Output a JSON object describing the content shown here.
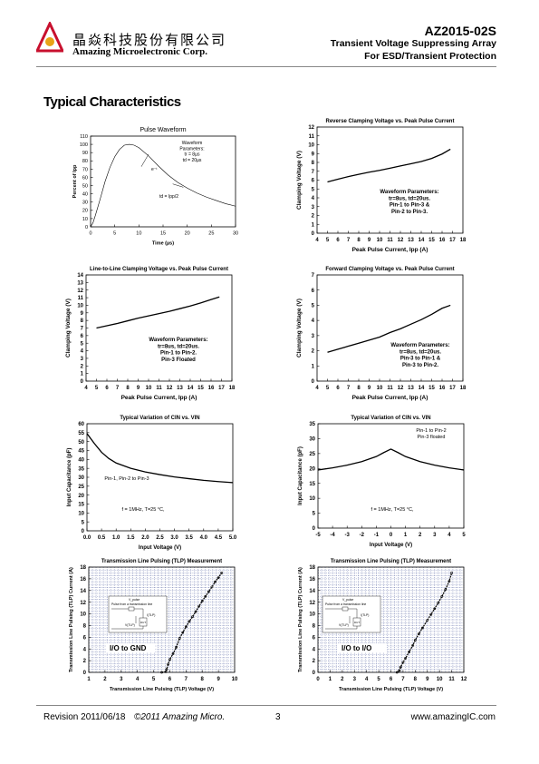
{
  "header": {
    "company_cn": "晶焱科技股份有限公司",
    "company_en": "Amazing Microelectronic Corp.",
    "part_number": "AZ2015-02S",
    "desc_line1": "Transient Voltage Suppressing Array",
    "desc_line2": "For ESD/Transient Protection",
    "logo_color": "#c8102e",
    "logo_accent": "#e8a317"
  },
  "section_title": "Typical Characteristics",
  "footer": {
    "revision": "Revision 2011/06/18",
    "copyright": "©2011 Amazing Micro.",
    "page": "3",
    "url": "www.amazingIC.com"
  },
  "chart_data": [
    {
      "id": "pulse",
      "type": "line",
      "title": "Pulse Waveform",
      "xlabel": "Time (µs)",
      "ylabel": "Percent of Ipp",
      "xlim": [
        0,
        30
      ],
      "ylim": [
        0,
        110
      ],
      "xticks": [
        "0",
        "5",
        "10",
        "15",
        "20",
        "25",
        "30"
      ],
      "yticks": [
        "0",
        "10",
        "20",
        "30",
        "40",
        "50",
        "60",
        "70",
        "80",
        "90",
        "100",
        "110"
      ],
      "grid": false,
      "annotations": [
        "Waveform",
        "Parameters:",
        "tr = 8µs",
        "td = 20µs",
        "e⁻ᵗ",
        "td = Ipp/2"
      ],
      "series": [
        {
          "x": [
            0,
            0.5,
            1,
            2,
            3,
            4,
            5,
            6,
            7,
            8,
            9,
            10,
            12,
            14,
            16,
            18,
            20,
            22,
            24,
            26,
            28,
            30
          ],
          "y": [
            0,
            5,
            14,
            34,
            55,
            72,
            85,
            94,
            99,
            100,
            99,
            96,
            86,
            74,
            63,
            54,
            47,
            41,
            36,
            32,
            28,
            25
          ]
        }
      ]
    },
    {
      "id": "reverse-clamp",
      "type": "line",
      "title": "Reverse Clamping Voltage vs. Peak Pulse Current",
      "xlabel": "Peak Pulse Current, Ipp (A)",
      "ylabel": "Clamping Voltage (V)",
      "xlim": [
        4,
        18
      ],
      "ylim": [
        0,
        12
      ],
      "xticks": [
        "4",
        "5",
        "6",
        "7",
        "8",
        "9",
        "10",
        "11",
        "12",
        "13",
        "14",
        "15",
        "16",
        "17",
        "18"
      ],
      "yticks": [
        "0",
        "1",
        "2",
        "3",
        "4",
        "5",
        "6",
        "7",
        "8",
        "9",
        "10",
        "11",
        "12"
      ],
      "grid": false,
      "annotations": [
        "Waveform Parameters:",
        "tr=8us, td=20us.",
        "Pin-1 to Pin-3 &",
        "Pin-2 to Pin-3."
      ],
      "series": [
        {
          "x": [
            5,
            6,
            7,
            8,
            9,
            10,
            11,
            12,
            13,
            14,
            15,
            16,
            16.8
          ],
          "y": [
            5.8,
            6.1,
            6.4,
            6.65,
            6.9,
            7.1,
            7.35,
            7.6,
            7.85,
            8.1,
            8.45,
            8.95,
            9.5
          ]
        }
      ]
    },
    {
      "id": "line-to-line-clamp",
      "type": "line",
      "title": "Line-to-Line Clamping Voltage vs. Peak Pulse Current",
      "xlabel": "Peak Pulse Current, Ipp (A)",
      "ylabel": "Clamping Voltage (V)",
      "xlim": [
        4,
        18
      ],
      "ylim": [
        0,
        14
      ],
      "xticks": [
        "4",
        "5",
        "6",
        "7",
        "8",
        "9",
        "10",
        "11",
        "12",
        "13",
        "14",
        "15",
        "16",
        "17",
        "18"
      ],
      "yticks": [
        "0",
        "1",
        "2",
        "3",
        "4",
        "5",
        "6",
        "7",
        "8",
        "9",
        "10",
        "11",
        "12",
        "13",
        "14"
      ],
      "grid": false,
      "annotations": [
        "Waveform Parameters:",
        "tr=8us, td=20us.",
        "Pin-1 to Pin-2.",
        "Pin-3 Floated"
      ],
      "series": [
        {
          "x": [
            5,
            6,
            7,
            8,
            9,
            10,
            11,
            12,
            13,
            14,
            15,
            16,
            16.8
          ],
          "y": [
            7.0,
            7.3,
            7.6,
            7.95,
            8.3,
            8.6,
            8.9,
            9.2,
            9.55,
            9.9,
            10.3,
            10.75,
            11.1
          ]
        }
      ]
    },
    {
      "id": "forward-clamp",
      "type": "line",
      "title": "Forward Clamping Voltage vs. Peak Pulse Current",
      "xlabel": "Peak Pulse Current, Ipp (A)",
      "ylabel": "Clamping Voltage (V)",
      "xlim": [
        4,
        18
      ],
      "ylim": [
        0,
        7
      ],
      "xticks": [
        "4",
        "5",
        "6",
        "7",
        "8",
        "9",
        "10",
        "11",
        "12",
        "13",
        "14",
        "15",
        "16",
        "17",
        "18"
      ],
      "yticks": [
        "0",
        "1",
        "2",
        "3",
        "4",
        "5",
        "6",
        "7"
      ],
      "grid": false,
      "annotations": [
        "Waveform Parameters:",
        "tr=8us, td=20us.",
        "Pin-3 to Pin-1 &",
        "Pin-3 to Pin-2."
      ],
      "series": [
        {
          "x": [
            5,
            6,
            7,
            8,
            9,
            10,
            11,
            12,
            13,
            14,
            15,
            16,
            16.8
          ],
          "y": [
            1.9,
            2.1,
            2.3,
            2.5,
            2.7,
            2.9,
            3.2,
            3.45,
            3.75,
            4.05,
            4.4,
            4.8,
            5.0
          ]
        }
      ]
    },
    {
      "id": "cin-vs-vin-1",
      "type": "line",
      "title": "Typical Variation of CIN vs. VIN",
      "xlabel": "Input Voltage (V)",
      "ylabel": "Input Capacitance (pF)",
      "xlim": [
        0,
        5
      ],
      "ylim": [
        0,
        60
      ],
      "xticks": [
        "0.0",
        "0.5",
        "1.0",
        "1.5",
        "2.0",
        "2.5",
        "3.0",
        "3.5",
        "4.0",
        "4.5",
        "5.0"
      ],
      "yticks": [
        "0",
        "5",
        "10",
        "15",
        "20",
        "25",
        "30",
        "35",
        "40",
        "45",
        "50",
        "55",
        "60"
      ],
      "grid": false,
      "annotations": [
        "Pin-1, Pin-2 to Pin-3",
        "f = 1MHz, T=25 °C,"
      ],
      "series": [
        {
          "x": [
            0,
            0.25,
            0.5,
            0.75,
            1.0,
            1.5,
            2.0,
            2.5,
            3.0,
            3.5,
            4.0,
            4.5,
            5.0
          ],
          "y": [
            54.5,
            49,
            44,
            40.5,
            38,
            35,
            33,
            31.5,
            30.2,
            29.2,
            28.3,
            27.6,
            27
          ]
        }
      ]
    },
    {
      "id": "cin-vs-vin-2",
      "type": "line",
      "title": "Typical Variation of CIN vs. VIN",
      "xlabel": "Input Voltage (V)",
      "ylabel": "Input Capacitance (pF)",
      "xlim": [
        -5,
        5
      ],
      "ylim": [
        0,
        35
      ],
      "xticks": [
        "-5",
        "-4",
        "-3",
        "-2",
        "-1",
        "0",
        "1",
        "2",
        "3",
        "4",
        "5"
      ],
      "yticks": [
        "0",
        "5",
        "10",
        "15",
        "20",
        "25",
        "30",
        "35"
      ],
      "grid": false,
      "annotations": [
        "Pin-1 to Pin-2",
        "Pin-3 floated",
        "f = 1MHz, T=25 °C,"
      ],
      "series": [
        {
          "x": [
            -5,
            -4,
            -3,
            -2,
            -1,
            -0.5,
            0,
            0.5,
            1,
            2,
            3,
            4,
            5
          ],
          "y": [
            19.5,
            20.2,
            21.1,
            22.3,
            24.0,
            25.3,
            26.5,
            25.3,
            24.0,
            22.3,
            21.1,
            20.2,
            19.5
          ]
        }
      ]
    },
    {
      "id": "tlp-1",
      "type": "line",
      "title": "Transmission Line Pulsing (TLP) Measurement",
      "xlabel": "Transmission Line Pulsing (TLP) Voltage (V)",
      "ylabel": "Transmission Line Pulsing (TLP) Current (A)",
      "xlim": [
        1,
        10
      ],
      "ylim": [
        0,
        18
      ],
      "xticks": [
        "1",
        "2",
        "3",
        "4",
        "5",
        "6",
        "7",
        "8",
        "9",
        "10"
      ],
      "yticks": [
        "0",
        "2",
        "4",
        "6",
        "8",
        "10",
        "12",
        "14",
        "16",
        "18"
      ],
      "grid": true,
      "annotations": [
        "I/O to GND",
        "Pulse from a transmission line",
        "V_pulse",
        "I(TLP)",
        "V(TLP)",
        "DUT"
      ],
      "series": [
        {
          "x": [
            5.5,
            5.75,
            5.8,
            5.9,
            6.0,
            6.2,
            6.4,
            6.6,
            6.8,
            7.0,
            7.2,
            7.4,
            7.6,
            7.8,
            8.0,
            8.2,
            8.4,
            8.6,
            8.8,
            9.0,
            9.2
          ],
          "y": [
            0,
            0.1,
            0.5,
            1.4,
            2.2,
            3.2,
            4.3,
            5.8,
            6.8,
            7.8,
            8.7,
            9.5,
            10.4,
            11.3,
            12.2,
            13.0,
            13.8,
            14.6,
            15.5,
            16.2,
            17.0
          ]
        }
      ]
    },
    {
      "id": "tlp-2",
      "type": "line",
      "title": "Transmission Line Pulsing (TLP) Measurement",
      "xlabel": "Transmission Line Pulsing (TLP) Voltage (V)",
      "ylabel": "Transmission Line Pulsing (TLP) Current (A)",
      "xlim": [
        0,
        12
      ],
      "ylim": [
        0,
        18
      ],
      "xticks": [
        "0",
        "1",
        "2",
        "3",
        "4",
        "5",
        "6",
        "7",
        "8",
        "9",
        "10",
        "11",
        "12"
      ],
      "yticks": [
        "0",
        "2",
        "4",
        "6",
        "8",
        "10",
        "12",
        "14",
        "16",
        "18"
      ],
      "grid": true,
      "annotations": [
        "I/O to I/O",
        "Pulse from a transmission line",
        "V_pulse",
        "I(TLP)",
        "V(TLP)",
        "DUT"
      ],
      "series": [
        {
          "x": [
            6.5,
            6.7,
            6.8,
            7.0,
            7.2,
            7.5,
            7.8,
            8.0,
            8.3,
            8.6,
            9.0,
            9.3,
            9.6,
            9.9,
            10.2,
            10.5,
            10.8,
            11.0
          ],
          "y": [
            0,
            0.3,
            0.9,
            1.7,
            2.4,
            3.5,
            4.6,
            5.5,
            6.6,
            7.6,
            8.9,
            9.9,
            10.9,
            11.9,
            13.0,
            14.2,
            15.6,
            17.0
          ]
        }
      ]
    }
  ]
}
